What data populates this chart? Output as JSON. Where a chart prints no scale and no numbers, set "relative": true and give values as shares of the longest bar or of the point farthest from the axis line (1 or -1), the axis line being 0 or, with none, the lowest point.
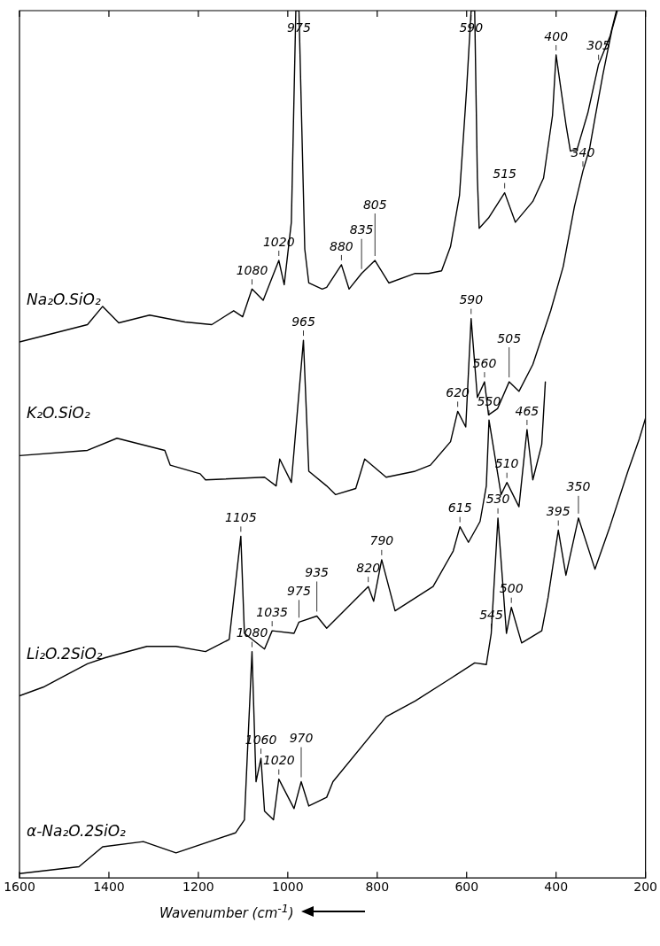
{
  "chart_data": {
    "type": "line",
    "xlabel": "Wavenumber (cm$^{-1}$)",
    "xlim": [
      1600,
      200
    ],
    "xticks": [
      1600,
      1400,
      1200,
      1000,
      800,
      600,
      400,
      200
    ],
    "tick_labels": "x",
    "relative": true,
    "legend": false,
    "grid": false,
    "marker": "none",
    "series": [
      {
        "name": "Na₂O.SiO₂",
        "color": "#000000",
        "x": [
          1600,
          1547,
          1448,
          1414,
          1378,
          1309,
          1230,
          1170,
          1121,
          1101,
          1080,
          1055,
          1020,
          1008,
          992,
          982,
          975,
          962,
          953,
          923,
          913,
          880,
          863,
          835,
          805,
          774,
          715,
          685,
          656,
          636,
          616,
          600,
          590,
          582,
          576,
          572,
          551,
          515,
          491,
          452,
          428,
          408,
          400,
          378,
          368,
          353,
          329,
          305,
          279,
          265
        ],
        "values": [
          0.618,
          0.625,
          0.638,
          0.659,
          0.64,
          0.649,
          0.641,
          0.638,
          0.654,
          0.647,
          0.679,
          0.666,
          0.712,
          0.684,
          0.756,
          1,
          1,
          0.725,
          0.686,
          0.679,
          0.681,
          0.707,
          0.679,
          0.697,
          0.712,
          0.686,
          0.697,
          0.697,
          0.7,
          0.728,
          0.787,
          0.91,
          1,
          1,
          0.807,
          0.749,
          0.761,
          0.79,
          0.756,
          0.78,
          0.807,
          0.879,
          0.949,
          0.869,
          0.838,
          0.84,
          0.882,
          0.938,
          0.971,
          1
        ]
      },
      {
        "name": "K₂O.SiO₂",
        "color": "#000000",
        "x": [
          1600,
          1448,
          1382,
          1275,
          1263,
          1196,
          1184,
          1052,
          1026,
          1018,
          992,
          965,
          953,
          913,
          893,
          848,
          828,
          780,
          715,
          681,
          636,
          620,
          602,
          590,
          576,
          560,
          551,
          531,
          505,
          483,
          452,
          412,
          384,
          359,
          340,
          325,
          313,
          295,
          275,
          263
        ],
        "values": [
          0.487,
          0.493,
          0.507,
          0.493,
          0.476,
          0.466,
          0.459,
          0.462,
          0.452,
          0.483,
          0.456,
          0.62,
          0.469,
          0.452,
          0.442,
          0.449,
          0.483,
          0.462,
          0.469,
          0.476,
          0.503,
          0.538,
          0.52,
          0.645,
          0.554,
          0.572,
          0.534,
          0.541,
          0.572,
          0.561,
          0.592,
          0.654,
          0.705,
          0.774,
          0.815,
          0.841,
          0.876,
          0.927,
          0.978,
          1
        ]
      },
      {
        "name": "Li₂O.2SiO₂",
        "color": "#000000",
        "x": [
          1600,
          1547,
          1448,
          1408,
          1315,
          1250,
          1184,
          1131,
          1105,
          1097,
          1052,
          1035,
          986,
          975,
          935,
          913,
          820,
          808,
          790,
          760,
          675,
          630,
          615,
          596,
          570,
          556,
          550,
          523,
          510,
          483,
          465,
          452,
          432,
          424
        ],
        "values": [
          0.21,
          0.22,
          0.247,
          0.254,
          0.267,
          0.267,
          0.261,
          0.275,
          0.394,
          0.282,
          0.264,
          0.285,
          0.282,
          0.295,
          0.302,
          0.288,
          0.336,
          0.319,
          0.367,
          0.308,
          0.336,
          0.377,
          0.405,
          0.387,
          0.411,
          0.452,
          0.528,
          0.442,
          0.456,
          0.428,
          0.517,
          0.459,
          0.5,
          0.572
        ]
      },
      {
        "name": "α-Na₂O.2SiO₂",
        "color": "#000000",
        "x": [
          1600,
          1467,
          1414,
          1323,
          1250,
          1117,
          1097,
          1080,
          1071,
          1060,
          1052,
          1032,
          1020,
          986,
          970,
          953,
          913,
          899,
          780,
          715,
          636,
          582,
          556,
          545,
          530,
          511,
          500,
          477,
          432,
          418,
          395,
          378,
          350,
          313,
          279,
          240,
          214,
          200
        ],
        "values": [
          0.005,
          0.013,
          0.036,
          0.042,
          0.029,
          0.052,
          0.067,
          0.261,
          0.111,
          0.138,
          0.077,
          0.067,
          0.114,
          0.08,
          0.111,
          0.083,
          0.093,
          0.111,
          0.186,
          0.204,
          0.23,
          0.248,
          0.246,
          0.282,
          0.415,
          0.282,
          0.312,
          0.271,
          0.285,
          0.323,
          0.401,
          0.349,
          0.415,
          0.356,
          0.406,
          0.468,
          0.506,
          0.53
        ]
      }
    ],
    "annotations": [
      {
        "text": "1080",
        "x": 1080,
        "y": 0.679
      },
      {
        "text": "1020",
        "x": 1020,
        "y": 0.712
      },
      {
        "text": "975",
        "x": 975,
        "y": 1
      },
      {
        "text": "880",
        "x": 880,
        "y": 0.707
      },
      {
        "text": "835",
        "x": 835,
        "y": 0.697
      },
      {
        "text": "805",
        "x": 805,
        "y": 0.712
      },
      {
        "text": "590",
        "x": 590,
        "y": 1
      },
      {
        "text": "515",
        "x": 515,
        "y": 0.79
      },
      {
        "text": "400",
        "x": 400,
        "y": 0.949
      },
      {
        "text": "305",
        "x": 305,
        "y": 0.938
      },
      {
        "text": "340",
        "x": 340,
        "y": 0.815
      },
      {
        "text": "965",
        "x": 965,
        "y": 0.62
      },
      {
        "text": "590",
        "x": 590,
        "y": 0.645
      },
      {
        "text": "620",
        "x": 620,
        "y": 0.538
      },
      {
        "text": "560",
        "x": 560,
        "y": 0.572
      },
      {
        "text": "505",
        "x": 505,
        "y": 0.572
      },
      {
        "text": "1105",
        "x": 1105,
        "y": 0.394
      },
      {
        "text": "1035",
        "x": 1035,
        "y": 0.285
      },
      {
        "text": "975",
        "x": 975,
        "y": 0.295
      },
      {
        "text": "935",
        "x": 935,
        "y": 0.302
      },
      {
        "text": "820",
        "x": 820,
        "y": 0.336
      },
      {
        "text": "790",
        "x": 790,
        "y": 0.367
      },
      {
        "text": "615",
        "x": 615,
        "y": 0.405
      },
      {
        "text": "550",
        "x": 550,
        "y": 0.528
      },
      {
        "text": "510",
        "x": 510,
        "y": 0.456
      },
      {
        "text": "465",
        "x": 465,
        "y": 0.517
      },
      {
        "text": "1080",
        "x": 1080,
        "y": 0.261
      },
      {
        "text": "1060",
        "x": 1060,
        "y": 0.138
      },
      {
        "text": "1020",
        "x": 1020,
        "y": 0.114
      },
      {
        "text": "970",
        "x": 970,
        "y": 0.111
      },
      {
        "text": "545",
        "x": 545,
        "y": 0.282
      },
      {
        "text": "530",
        "x": 530,
        "y": 0.415
      },
      {
        "text": "500",
        "x": 500,
        "y": 0.312
      },
      {
        "text": "395",
        "x": 395,
        "y": 0.401
      },
      {
        "text": "350",
        "x": 350,
        "y": 0.415
      }
    ]
  }
}
